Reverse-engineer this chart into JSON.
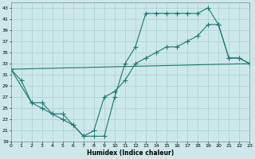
{
  "xlabel": "Humidex (Indice chaleur)",
  "bg_color": "#cce8ea",
  "line_color": "#1a7a6e",
  "grid_color": "#aacfd3",
  "xlim_min": 0,
  "xlim_max": 23,
  "ylim_min": 19,
  "ylim_max": 44,
  "xticks": [
    0,
    1,
    2,
    3,
    4,
    5,
    6,
    7,
    8,
    9,
    10,
    11,
    12,
    13,
    14,
    15,
    16,
    17,
    18,
    19,
    20,
    21,
    22,
    23
  ],
  "yticks": [
    19,
    21,
    23,
    25,
    27,
    29,
    31,
    33,
    35,
    37,
    39,
    41,
    43
  ],
  "line1_x": [
    0,
    1,
    2,
    3,
    4,
    5,
    6,
    7,
    8,
    9,
    10,
    11,
    12,
    13,
    14,
    15,
    16,
    17,
    18,
    19,
    20,
    21,
    22,
    23
  ],
  "line1_y": [
    32,
    30,
    26,
    26,
    24,
    24,
    22,
    20,
    20,
    20,
    27,
    33,
    36,
    42,
    42,
    42,
    42,
    42,
    42,
    43,
    40,
    34,
    34,
    33
  ],
  "line2_x": [
    0,
    2,
    3,
    4,
    5,
    6,
    7,
    8,
    9,
    10,
    11,
    12,
    13,
    14,
    15,
    16,
    17,
    18,
    19,
    20,
    21,
    22,
    23
  ],
  "line2_y": [
    32,
    26,
    25,
    24,
    23,
    22,
    20,
    21,
    27,
    28,
    30,
    33,
    34,
    35,
    36,
    36,
    37,
    38,
    40,
    40,
    34,
    34,
    33
  ],
  "line3_x": [
    0,
    23
  ],
  "line3_y": [
    32,
    33
  ],
  "marker_size": 2.0,
  "line_width": 0.8,
  "xlabel_fontsize": 5.5,
  "tick_fontsize": 4.5
}
